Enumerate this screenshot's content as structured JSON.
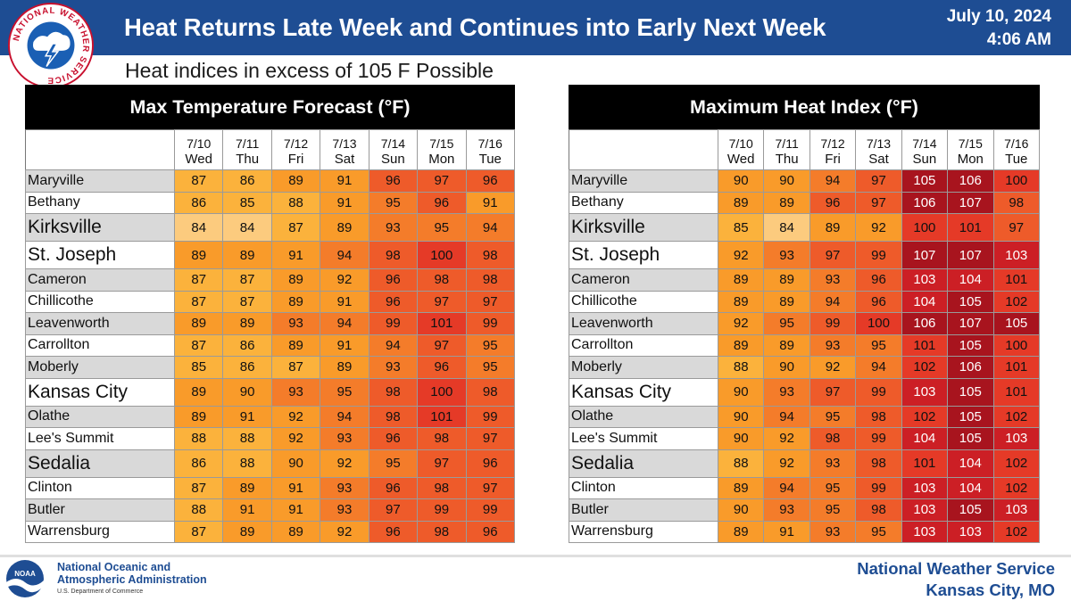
{
  "header": {
    "title": "Heat Returns Late Week and Continues into Early Next Week",
    "date": "July 10, 2024",
    "time": "4:06 AM",
    "subtitle": "Heat indices in excess of 105 F Possible",
    "logo_text": "NATIONAL WEATHER SERVICE"
  },
  "days": [
    {
      "date": "7/10",
      "day": "Wed"
    },
    {
      "date": "7/11",
      "day": "Thu"
    },
    {
      "date": "7/12",
      "day": "Fri"
    },
    {
      "date": "7/13",
      "day": "Sat"
    },
    {
      "date": "7/14",
      "day": "Sun"
    },
    {
      "date": "7/15",
      "day": "Mon"
    },
    {
      "date": "7/16",
      "day": "Tue"
    }
  ],
  "cities": [
    {
      "name": "Maryville",
      "size": "normal"
    },
    {
      "name": "Bethany",
      "size": "normal"
    },
    {
      "name": "Kirksville",
      "size": "big"
    },
    {
      "name": "St. Joseph",
      "size": "big"
    },
    {
      "name": "Cameron",
      "size": "normal"
    },
    {
      "name": "Chillicothe",
      "size": "normal"
    },
    {
      "name": "Leavenworth",
      "size": "normal"
    },
    {
      "name": "Carrollton",
      "size": "normal"
    },
    {
      "name": "Moberly",
      "size": "normal"
    },
    {
      "name": "Kansas City",
      "size": "big"
    },
    {
      "name": "Olathe",
      "size": "normal"
    },
    {
      "name": "Lee's Summit",
      "size": "normal"
    },
    {
      "name": "Sedalia",
      "size": "big"
    },
    {
      "name": "Clinton",
      "size": "normal"
    },
    {
      "name": "Butler",
      "size": "normal"
    },
    {
      "name": "Warrensburg",
      "size": "normal"
    }
  ],
  "max_temp": {
    "title": "Max Temperature Forecast (°F)",
    "values": [
      [
        87,
        86,
        89,
        91,
        96,
        97,
        96
      ],
      [
        86,
        85,
        88,
        91,
        95,
        96,
        91
      ],
      [
        84,
        84,
        87,
        89,
        93,
        95,
        94
      ],
      [
        89,
        89,
        91,
        94,
        98,
        100,
        98
      ],
      [
        87,
        87,
        89,
        92,
        96,
        98,
        98
      ],
      [
        87,
        87,
        89,
        91,
        96,
        97,
        97
      ],
      [
        89,
        89,
        93,
        94,
        99,
        101,
        99
      ],
      [
        87,
        86,
        89,
        91,
        94,
        97,
        95
      ],
      [
        85,
        86,
        87,
        89,
        93,
        96,
        95
      ],
      [
        89,
        90,
        93,
        95,
        98,
        100,
        98
      ],
      [
        89,
        91,
        92,
        94,
        98,
        101,
        99
      ],
      [
        88,
        88,
        92,
        93,
        96,
        98,
        97
      ],
      [
        86,
        88,
        90,
        92,
        95,
        97,
        96
      ],
      [
        87,
        89,
        91,
        93,
        96,
        98,
        97
      ],
      [
        88,
        91,
        91,
        93,
        97,
        99,
        99
      ],
      [
        87,
        89,
        89,
        92,
        96,
        98,
        96
      ]
    ]
  },
  "heat_index": {
    "title": "Maximum Heat Index (°F)",
    "values": [
      [
        90,
        90,
        94,
        97,
        105,
        106,
        100
      ],
      [
        89,
        89,
        96,
        97,
        106,
        107,
        98
      ],
      [
        85,
        84,
        89,
        92,
        100,
        101,
        97
      ],
      [
        92,
        93,
        97,
        99,
        107,
        107,
        103
      ],
      [
        89,
        89,
        93,
        96,
        103,
        104,
        101
      ],
      [
        89,
        89,
        94,
        96,
        104,
        105,
        102
      ],
      [
        92,
        95,
        99,
        100,
        106,
        107,
        105
      ],
      [
        89,
        89,
        93,
        95,
        101,
        105,
        100
      ],
      [
        88,
        90,
        92,
        94,
        102,
        106,
        101
      ],
      [
        90,
        93,
        97,
        99,
        103,
        105,
        101
      ],
      [
        90,
        94,
        95,
        98,
        102,
        105,
        102
      ],
      [
        90,
        92,
        98,
        99,
        104,
        105,
        103
      ],
      [
        88,
        92,
        93,
        98,
        101,
        104,
        102
      ],
      [
        89,
        94,
        95,
        99,
        103,
        104,
        102
      ],
      [
        90,
        93,
        95,
        98,
        103,
        105,
        103
      ],
      [
        89,
        91,
        93,
        95,
        103,
        103,
        102
      ]
    ]
  },
  "color_scale": [
    {
      "min": 0,
      "max": 84,
      "color": "#fccb7e"
    },
    {
      "min": 85,
      "max": 88,
      "color": "#fbb23c"
    },
    {
      "min": 89,
      "max": 92,
      "color": "#f99b2a"
    },
    {
      "min": 93,
      "max": 95,
      "color": "#f47c2a"
    },
    {
      "min": 96,
      "max": 99,
      "color": "#ee5b2a"
    },
    {
      "min": 100,
      "max": 102,
      "color": "#e53a27"
    },
    {
      "min": 103,
      "max": 104,
      "color": "#cc1f25"
    },
    {
      "min": 105,
      "max": 120,
      "color": "#a8141e"
    }
  ],
  "footer": {
    "noaa_line1": "National Oceanic and",
    "noaa_line2": "Atmospheric Administration",
    "noaa_dept": "U.S. Department of Commerce",
    "noaa_logo_text": "NOAA",
    "office_line1": "National Weather Service",
    "office_line2": "Kansas City, MO"
  },
  "colors": {
    "banner": "#1e4d93",
    "panel_header": "#000000",
    "city_gray": "#d9d9d9"
  }
}
